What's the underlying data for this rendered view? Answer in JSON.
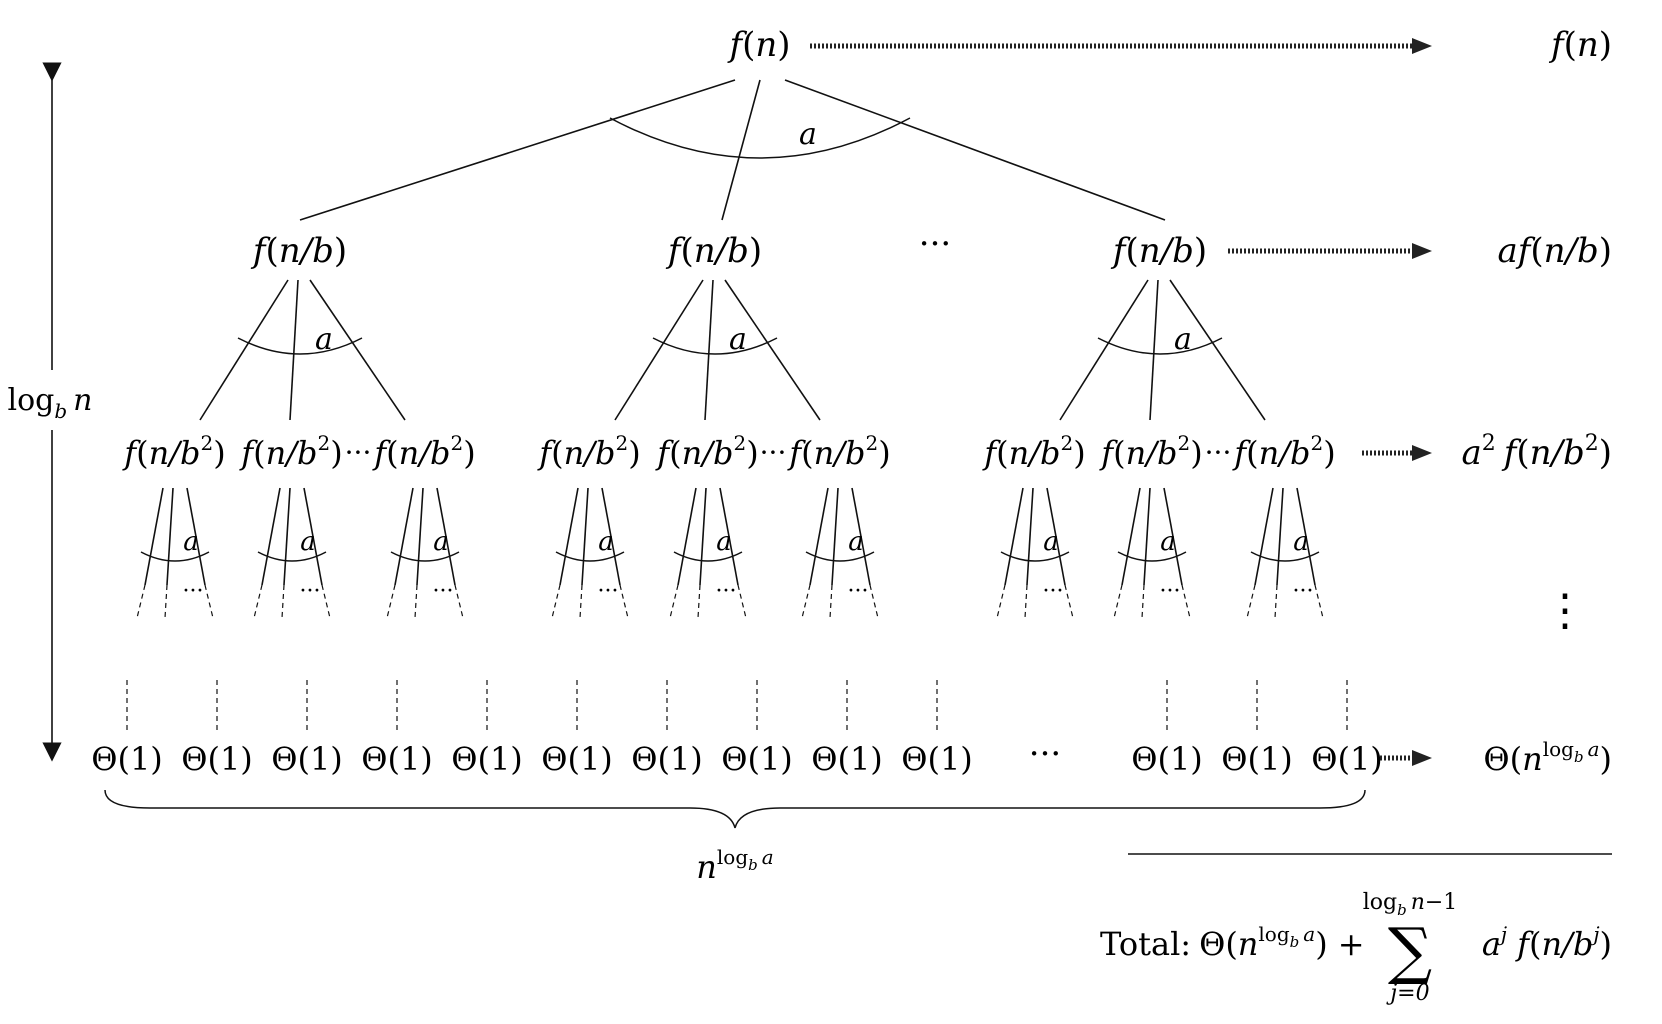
{
  "diagram": {
    "root": {
      "func": "f",
      "arg": "n"
    },
    "level1_node": {
      "func": "f",
      "arg": "n/b"
    },
    "level2_node": {
      "func": "f",
      "arg": "n/b",
      "exp": "2"
    },
    "branch_label": "a",
    "ellipsis": "···",
    "leaf": {
      "label": "Θ(1)"
    },
    "right_column": {
      "row0": {
        "func": "f",
        "arg": "n"
      },
      "row1": {
        "coef": "a",
        "func": "f",
        "arg": "n/b"
      },
      "row2": {
        "coef": "a",
        "coef_exp": "2",
        "func": "f",
        "arg": "n/b",
        "exp": "2"
      },
      "vdots": "⋮",
      "row_leaf": {
        "theta": "Θ(",
        "base": "n",
        "exp": "log",
        "exp_sub": "b",
        "exp_var": "a",
        "close": ")"
      }
    },
    "height_label": {
      "text": "log",
      "sub": "b",
      "var": "n"
    },
    "leaf_count": {
      "base": "n",
      "exp": "log",
      "exp_sub": "b",
      "exp_var": "a"
    },
    "total": {
      "label": "Total:",
      "theta": "Θ(",
      "base": "n",
      "exp": "log",
      "exp_sub": "b",
      "exp_var": "a",
      "close": ")",
      "plus": "+",
      "sum_symbol": "∑",
      "upper": {
        "text": "log",
        "sub": "b",
        "var": "n",
        "tail": "−1"
      },
      "lower": "j=0",
      "term": {
        "coef": "a",
        "coef_exp": "j",
        "func": "f",
        "arg": "n/b",
        "exp": "j"
      }
    }
  }
}
